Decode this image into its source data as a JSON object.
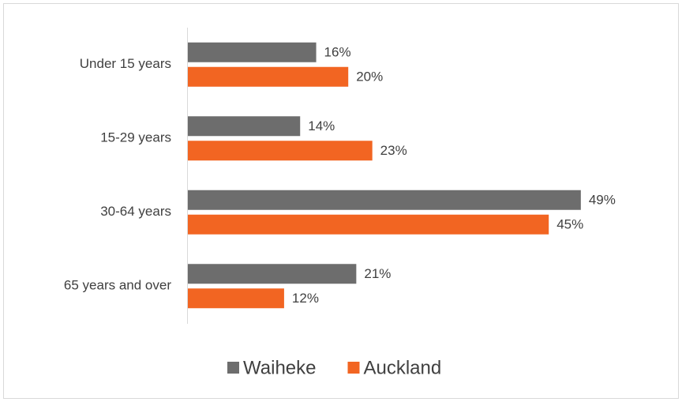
{
  "chart_data": {
    "type": "bar",
    "orientation": "horizontal",
    "categories": [
      "Under 15 years",
      "15-29 years",
      "30-64 years",
      "65 years and over"
    ],
    "series": [
      {
        "name": "Waiheke",
        "color": "#6d6d6d",
        "values": [
          16,
          14,
          49,
          21
        ],
        "value_labels": [
          "16%",
          "14%",
          "49%",
          "21%"
        ]
      },
      {
        "name": "Auckland",
        "color": "#f26522",
        "values": [
          20,
          23,
          45,
          12
        ],
        "value_labels": [
          "20%",
          "23%",
          "45%",
          "12%"
        ]
      }
    ],
    "legend": "bottom"
  }
}
